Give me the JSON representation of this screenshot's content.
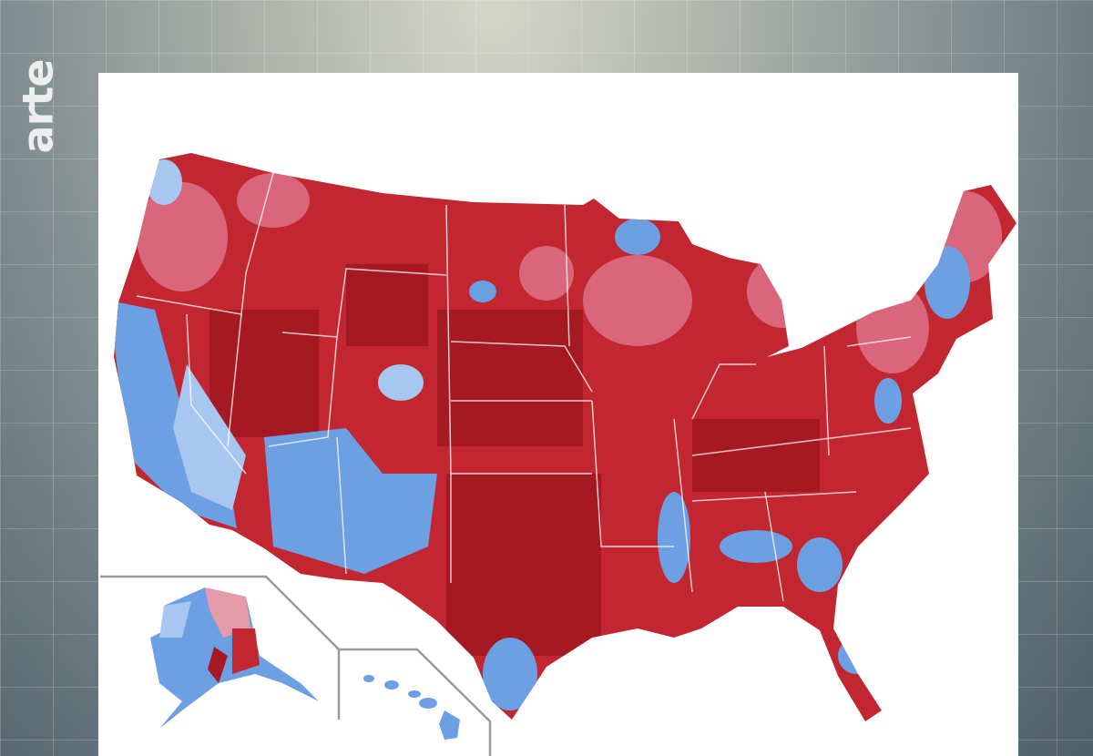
{
  "logo": "arte"
}
